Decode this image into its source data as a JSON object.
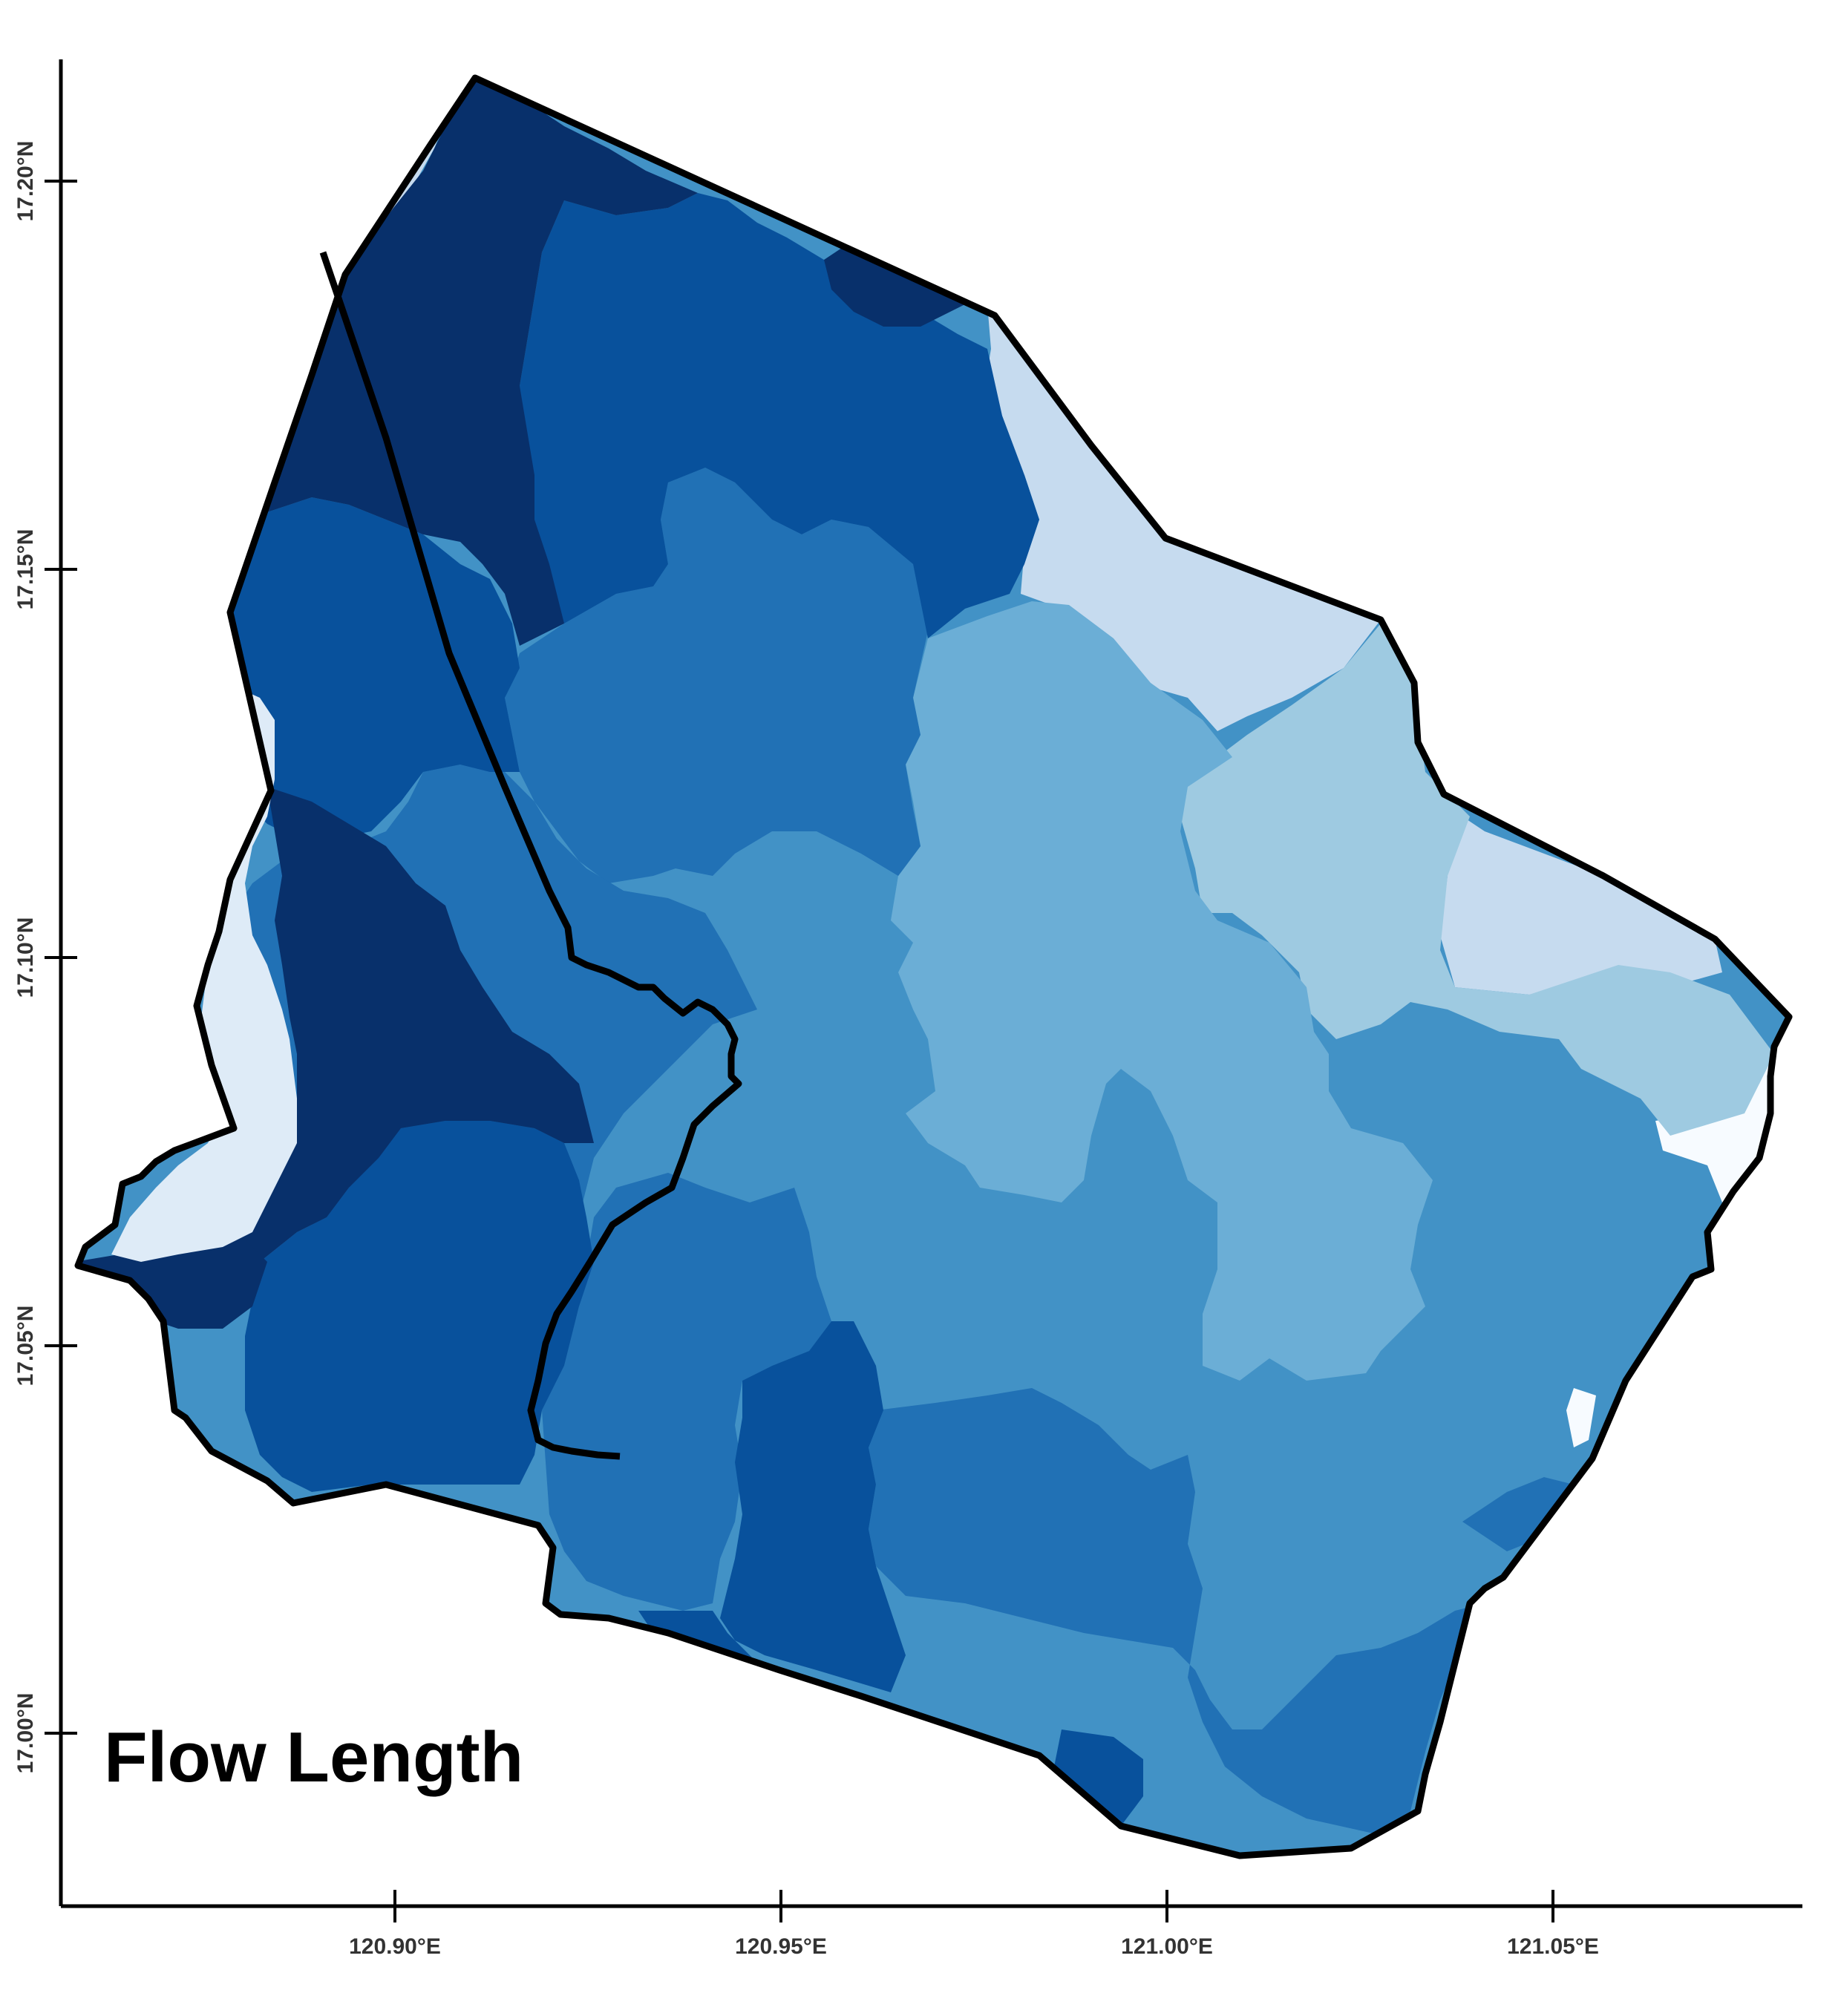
{
  "map": {
    "title": "Flow Length",
    "x_axis": {
      "ticks": [
        "120.90°E",
        "120.95°E",
        "121.00°E",
        "121.05°E"
      ]
    },
    "y_axis": {
      "ticks": [
        "17.20°N",
        "17.15°N",
        "17.10°N",
        "17.05°N",
        "17.00°N"
      ]
    },
    "palette": [
      "#f7fbff",
      "#deebf7",
      "#c6dbef",
      "#9ecae1",
      "#6baed6",
      "#4292c6",
      "#2171b5",
      "#08519c",
      "#08306b"
    ]
  }
}
